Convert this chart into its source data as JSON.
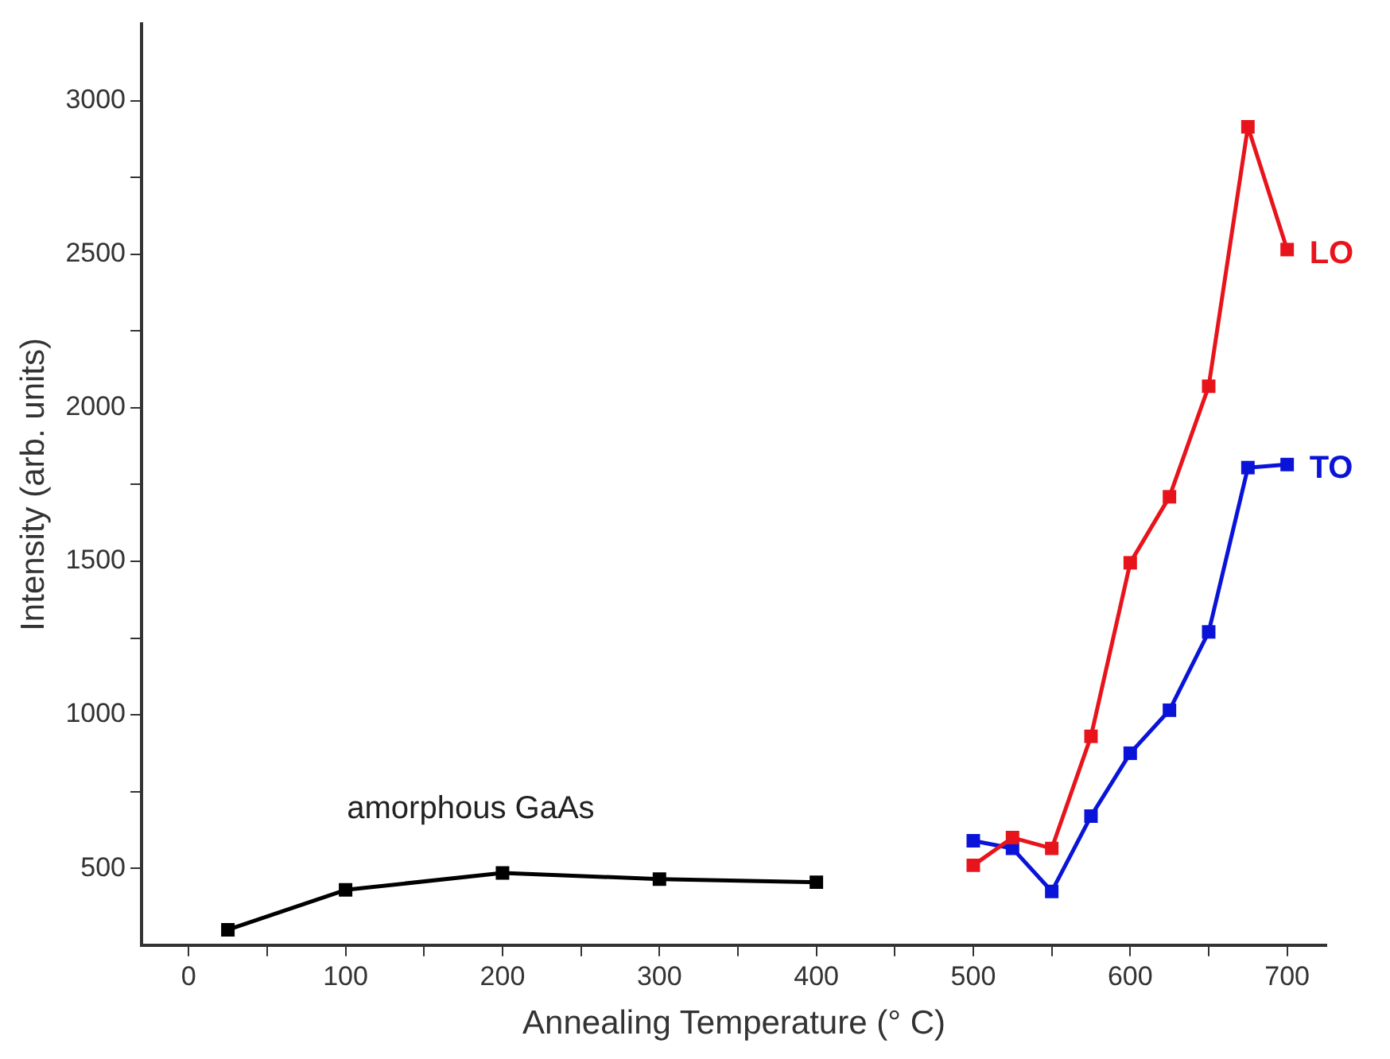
{
  "chart_data": {
    "type": "line",
    "xlabel": "Annealing Temperature (° C)",
    "ylabel": "Intensity (arb. units)",
    "xlim": [
      -30,
      725
    ],
    "ylim": [
      250,
      3250
    ],
    "xticks": [
      0,
      {
        "value": 50,
        "label": null
      },
      100,
      {
        "value": 150,
        "label": null
      },
      200,
      {
        "value": 250,
        "label": null
      },
      300,
      {
        "value": 350,
        "label": null
      },
      400,
      {
        "value": 450,
        "label": null
      },
      500,
      {
        "value": 550,
        "label": null
      },
      600,
      {
        "value": 650,
        "label": null
      },
      700
    ],
    "yticks": [
      500,
      {
        "value": 750,
        "label": null
      },
      1000,
      {
        "value": 1250,
        "label": null
      },
      1500,
      {
        "value": 1750,
        "label": null
      },
      2000,
      {
        "value": 2250,
        "label": null
      },
      2500,
      {
        "value": 2750,
        "label": null
      },
      3000
    ],
    "grid": false,
    "legend": false,
    "marker": "square",
    "line_style": "solid",
    "series": [
      {
        "name": "amorphous GaAs",
        "color": "#000000",
        "x": [
          25,
          100,
          200,
          300,
          400
        ],
        "values": [
          300,
          430,
          485,
          465,
          455
        ]
      },
      {
        "name": "LO",
        "color": "#e8141c",
        "x": [
          500,
          525,
          550,
          575,
          600,
          625,
          650,
          675,
          700
        ],
        "values": [
          510,
          600,
          565,
          930,
          1495,
          1710,
          2070,
          2915,
          2515
        ]
      },
      {
        "name": "TO",
        "color": "#0a14d8",
        "x": [
          500,
          525,
          550,
          575,
          600,
          625,
          650,
          675,
          700
        ],
        "values": [
          590,
          565,
          425,
          670,
          875,
          1015,
          1270,
          1805,
          1815
        ]
      }
    ]
  }
}
